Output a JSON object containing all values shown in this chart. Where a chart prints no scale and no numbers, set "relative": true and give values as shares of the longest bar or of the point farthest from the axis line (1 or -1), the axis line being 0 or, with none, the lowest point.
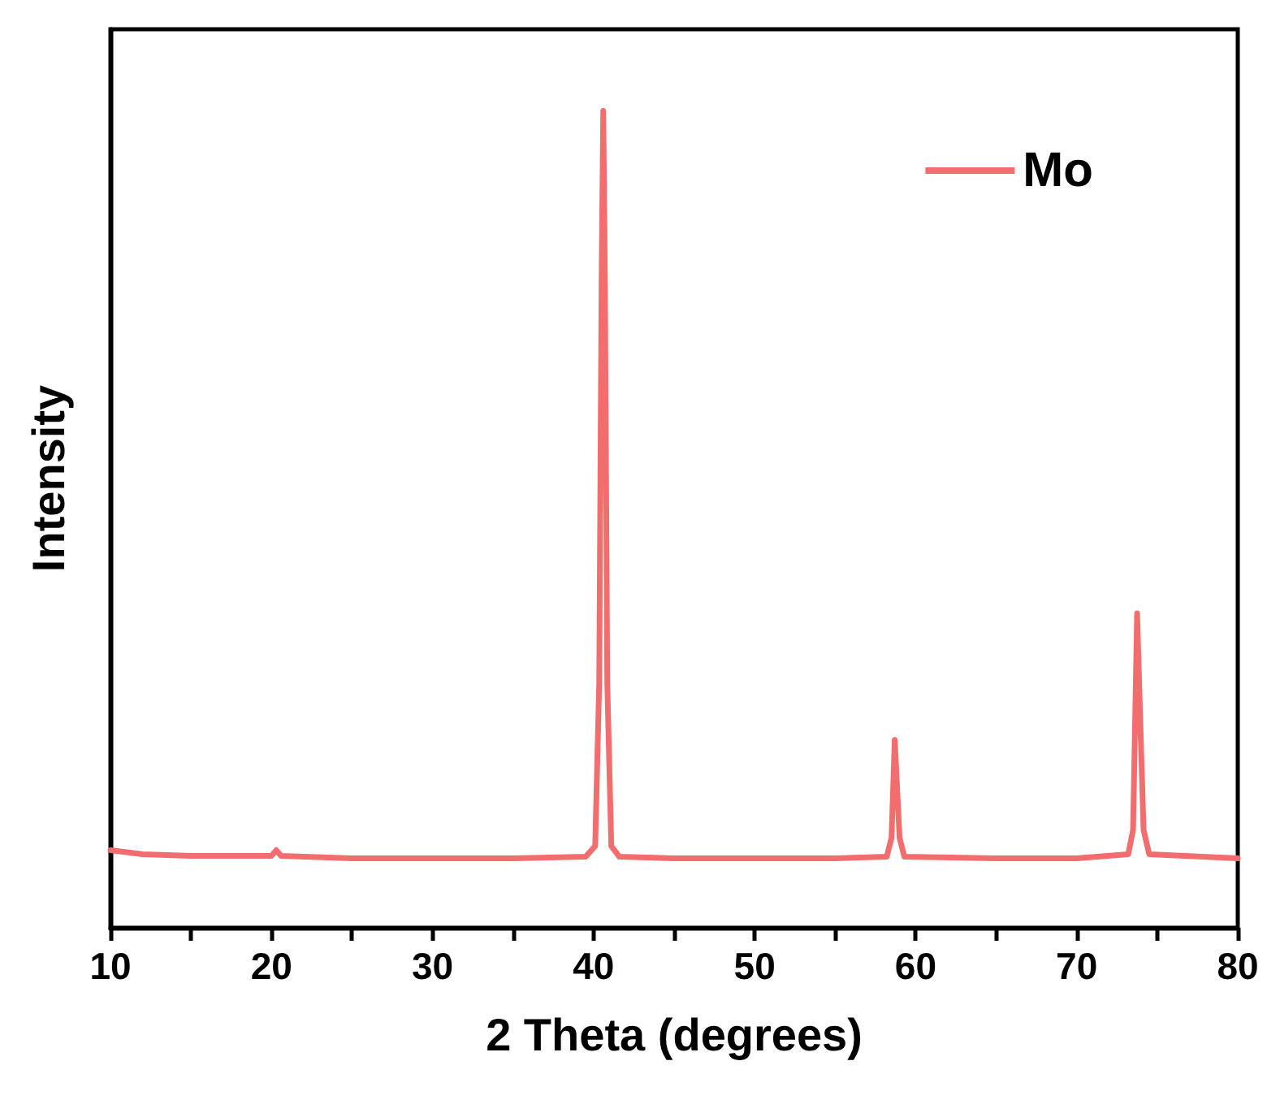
{
  "chart_data": {
    "type": "line",
    "relative": true,
    "xlabel": "2 Theta (degrees)",
    "ylabel": "Intensity",
    "xlim": [
      10,
      80
    ],
    "xticks": [
      10,
      {
        "value": 15,
        "label": null
      },
      20,
      {
        "value": 25,
        "label": null
      },
      30,
      {
        "value": 35,
        "label": null
      },
      40,
      {
        "value": 45,
        "label": null
      },
      50,
      {
        "value": 55,
        "label": null
      },
      60,
      {
        "value": 65,
        "label": null
      },
      70,
      {
        "value": 75,
        "label": null
      },
      80
    ],
    "tick_labels": "x",
    "legend": "top right",
    "grid": false,
    "marker": "none",
    "line_style": "solid",
    "series": [
      {
        "name": "Mo",
        "color": "#f26d6d",
        "x": [
          10,
          12,
          15,
          20,
          20.3,
          20.6,
          25,
          30,
          35,
          39.5,
          40.1,
          40.35,
          40.5,
          40.6,
          40.7,
          40.85,
          41.1,
          41.6,
          45,
          50,
          55,
          58.2,
          58.5,
          58.7,
          58.85,
          59.0,
          59.3,
          65,
          70,
          73.2,
          73.5,
          73.75,
          73.95,
          74.15,
          74.5,
          80
        ],
        "values": [
          0.095,
          0.09,
          0.088,
          0.088,
          0.095,
          0.088,
          0.085,
          0.085,
          0.085,
          0.087,
          0.1,
          0.3,
          0.8,
          1,
          0.8,
          0.3,
          0.1,
          0.087,
          0.085,
          0.085,
          0.085,
          0.087,
          0.11,
          0.23,
          0.17,
          0.11,
          0.087,
          0.085,
          0.085,
          0.09,
          0.12,
          0.385,
          0.25,
          0.12,
          0.09,
          0.085
        ]
      }
    ]
  }
}
